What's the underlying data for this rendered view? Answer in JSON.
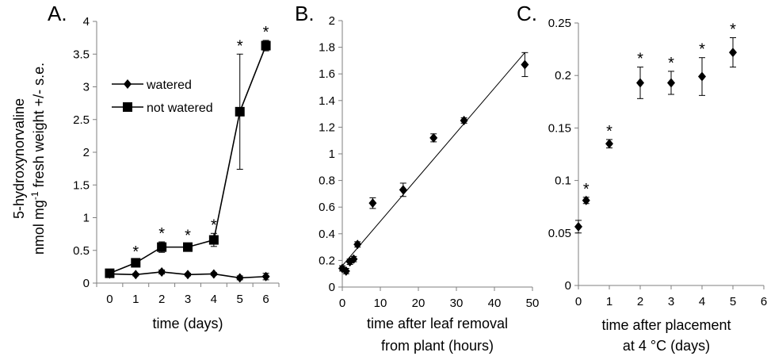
{
  "ylabel_line1": "5-hydroxynorvaline",
  "ylabel_line2": "nmol mg",
  "ylabel_sup": "-1",
  "ylabel_line2b": " fresh weight +/- s.e.",
  "chart_data": [
    {
      "panel_label": "A.",
      "type": "line",
      "xlabel_lines": [
        "time (days)"
      ],
      "xlim": [
        -0.5,
        6.5
      ],
      "ylim": [
        0,
        4
      ],
      "xticks": [
        "0",
        "1",
        "2",
        "3",
        "4",
        "5",
        "6"
      ],
      "yticks": [
        "0",
        "0.5",
        "1",
        "1.5",
        "2",
        "2.5",
        "3",
        "3.5",
        "4"
      ],
      "legend_position": "upper-left",
      "series": [
        {
          "name": "watered",
          "marker": "diamond",
          "x": [
            0,
            1,
            2,
            3,
            4,
            5,
            6
          ],
          "y": [
            0.14,
            0.13,
            0.17,
            0.13,
            0.14,
            0.08,
            0.1
          ],
          "err": [
            0.02,
            0.02,
            0.03,
            0.02,
            0.02,
            0.03,
            0.05
          ]
        },
        {
          "name": "not watered",
          "marker": "square",
          "x": [
            0,
            1,
            2,
            3,
            4,
            5,
            6
          ],
          "y": [
            0.15,
            0.31,
            0.55,
            0.55,
            0.66,
            2.62,
            3.63
          ],
          "err": [
            0.03,
            0.04,
            0.08,
            0.05,
            0.1,
            0.88,
            0.08
          ]
        }
      ],
      "stars": [
        {
          "x": 1,
          "y": 0.35
        },
        {
          "x": 2,
          "y": 0.63
        },
        {
          "x": 3,
          "y": 0.6
        },
        {
          "x": 4,
          "y": 0.76
        },
        {
          "x": 5,
          "y": 3.5
        },
        {
          "x": 6,
          "y": 3.71
        }
      ]
    },
    {
      "panel_label": "B.",
      "type": "scatter",
      "xlabel_lines": [
        "time after leaf removal",
        "from plant (hours)"
      ],
      "xlim": [
        0,
        50
      ],
      "ylim": [
        0,
        2
      ],
      "xticks": [
        "0",
        "10",
        "20",
        "30",
        "40",
        "50"
      ],
      "yticks": [
        "0",
        "0.2",
        "0.4",
        "0.6",
        "0.8",
        "1",
        "1.2",
        "1.4",
        "1.6",
        "1.8",
        "2"
      ],
      "series": [
        {
          "marker": "diamond",
          "x": [
            0,
            1,
            2,
            3,
            4,
            8,
            16,
            24,
            32,
            48
          ],
          "y": [
            0.14,
            0.12,
            0.19,
            0.21,
            0.32,
            0.63,
            0.73,
            1.12,
            1.25,
            1.67
          ],
          "err": [
            0.02,
            0.02,
            0.02,
            0.02,
            0.02,
            0.04,
            0.05,
            0.03,
            0.02,
            0.09
          ]
        }
      ],
      "trendline": {
        "x": [
          0,
          48
        ],
        "y": [
          0.16,
          1.76
        ]
      }
    },
    {
      "panel_label": "C.",
      "type": "scatter",
      "xlabel_lines": [
        "time after placement",
        "at 4 °C (days)"
      ],
      "xlim": [
        0,
        6
      ],
      "ylim": [
        0,
        0.25
      ],
      "xticks": [
        "0",
        "1",
        "2",
        "3",
        "4",
        "5",
        "6"
      ],
      "yticks": [
        "0",
        "0.05",
        "0.1",
        "0.15",
        "0.2",
        "0.25"
      ],
      "series": [
        {
          "marker": "diamond",
          "x": [
            0,
            0.25,
            1,
            2,
            3,
            4,
            5
          ],
          "y": [
            0.056,
            0.081,
            0.135,
            0.193,
            0.193,
            0.199,
            0.222
          ],
          "err": [
            0.006,
            0.003,
            0.004,
            0.015,
            0.011,
            0.018,
            0.014
          ]
        }
      ],
      "stars": [
        {
          "x": 0.25,
          "y": 0.084
        },
        {
          "x": 1,
          "y": 0.139
        },
        {
          "x": 2,
          "y": 0.208
        },
        {
          "x": 3,
          "y": 0.204
        },
        {
          "x": 4,
          "y": 0.217
        },
        {
          "x": 5,
          "y": 0.236
        }
      ]
    }
  ]
}
